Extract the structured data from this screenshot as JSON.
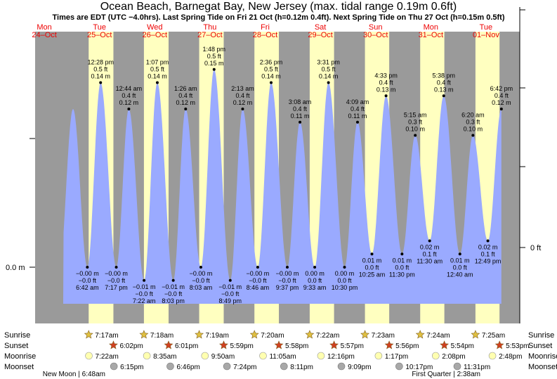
{
  "page": {
    "title": "Ocean Beach, Barnegat Bay, New Jersey (max. tidal range 0.19m 0.6ft)",
    "subtitle": "Times are EDT (UTC −4.0hrs). Last Spring Tide on Fri 21 Oct (h=0.12m 0.4ft). Next Spring Tide on Thu 27 Oct (h=0.15m 0.5ft)"
  },
  "colors": {
    "night": "#9a9a9a",
    "day": "#ffffc0",
    "tide": "#9aaaff",
    "day_label": "#ee0000",
    "sun_star": "#e0c040",
    "sunset_star": "#d04020",
    "moonrise": "#ffffb0",
    "moonset": "#a8a8a8"
  },
  "chart_data": {
    "type": "area",
    "y_unit_left": "m",
    "y_unit_right": "ft",
    "y_left_label": "0.0 m",
    "y_right_label": "0 ft",
    "ylim_m": [
      -0.05,
      0.2
    ],
    "days": [
      {
        "dow": "Mon",
        "date": "24–Oct",
        "date_iso": "2022-10-24"
      },
      {
        "dow": "Tue",
        "date": "25–Oct",
        "date_iso": "2022-10-25"
      },
      {
        "dow": "Wed",
        "date": "26–Oct",
        "date_iso": "2022-10-26"
      },
      {
        "dow": "Thu",
        "date": "27–Oct",
        "date_iso": "2022-10-27"
      },
      {
        "dow": "Fri",
        "date": "28–Oct",
        "date_iso": "2022-10-28"
      },
      {
        "dow": "Sat",
        "date": "29–Oct",
        "date_iso": "2022-10-29"
      },
      {
        "dow": "Sun",
        "date": "30–Oct",
        "date_iso": "2022-10-30"
      },
      {
        "dow": "Mon",
        "date": "31–Oct",
        "date_iso": "2022-10-31"
      },
      {
        "dow": "Tue",
        "date": "01–Nov",
        "date_iso": "2022-11-01"
      }
    ],
    "extremes": [
      {
        "date": "2022-10-25",
        "time": "6:42 am",
        "type": "low",
        "m": -0.0,
        "m_label": "−0.00 m",
        "ft_label": "−0.0 ft"
      },
      {
        "date": "2022-10-25",
        "time": "12:28 pm",
        "type": "high",
        "m": 0.14,
        "m_label": "0.14 m",
        "ft_label": "0.5 ft"
      },
      {
        "date": "2022-10-25",
        "time": "7:17 pm",
        "type": "low",
        "m": -0.0,
        "m_label": "−0.00 m",
        "ft_label": "−0.0 ft"
      },
      {
        "date": "2022-10-26",
        "time": "12:44 am",
        "type": "high",
        "m": 0.12,
        "m_label": "0.12 m",
        "ft_label": "0.4 ft"
      },
      {
        "date": "2022-10-26",
        "time": "7:22 am",
        "type": "low",
        "m": -0.01,
        "m_label": "−0.01 m",
        "ft_label": "−0.0 ft"
      },
      {
        "date": "2022-10-26",
        "time": "1:07 pm",
        "type": "high",
        "m": 0.14,
        "m_label": "0.14 m",
        "ft_label": "0.5 ft"
      },
      {
        "date": "2022-10-26",
        "time": "8:03 pm",
        "type": "low",
        "m": -0.01,
        "m_label": "−0.01 m",
        "ft_label": "−0.0 ft"
      },
      {
        "date": "2022-10-27",
        "time": "1:26 am",
        "type": "high",
        "m": 0.12,
        "m_label": "0.12 m",
        "ft_label": "0.4 ft"
      },
      {
        "date": "2022-10-27",
        "time": "8:03 am",
        "type": "low",
        "m": -0.0,
        "m_label": "−0.00 m",
        "ft_label": "−0.0 ft"
      },
      {
        "date": "2022-10-27",
        "time": "1:48 pm",
        "type": "high",
        "m": 0.15,
        "m_label": "0.15 m",
        "ft_label": "0.5 ft"
      },
      {
        "date": "2022-10-27",
        "time": "8:49 pm",
        "type": "low",
        "m": -0.01,
        "m_label": "−0.01 m",
        "ft_label": "−0.0 ft"
      },
      {
        "date": "2022-10-28",
        "time": "2:13 am",
        "type": "high",
        "m": 0.12,
        "m_label": "0.12 m",
        "ft_label": "0.4 ft"
      },
      {
        "date": "2022-10-28",
        "time": "8:46 am",
        "type": "low",
        "m": -0.0,
        "m_label": "−0.00 m",
        "ft_label": "−0.0 ft"
      },
      {
        "date": "2022-10-28",
        "time": "2:36 pm",
        "type": "high",
        "m": 0.14,
        "m_label": "0.14 m",
        "ft_label": "0.5 ft"
      },
      {
        "date": "2022-10-28",
        "time": "9:37 pm",
        "type": "low",
        "m": -0.0,
        "m_label": "−0.00 m",
        "ft_label": "−0.0 ft"
      },
      {
        "date": "2022-10-29",
        "time": "3:08 am",
        "type": "high",
        "m": 0.11,
        "m_label": "0.11 m",
        "ft_label": "0.4 ft"
      },
      {
        "date": "2022-10-29",
        "time": "9:33 am",
        "type": "low",
        "m": 0.0,
        "m_label": "0.00 m",
        "ft_label": "0.0 ft"
      },
      {
        "date": "2022-10-29",
        "time": "3:31 pm",
        "type": "high",
        "m": 0.14,
        "m_label": "0.14 m",
        "ft_label": "0.5 ft"
      },
      {
        "date": "2022-10-29",
        "time": "10:30 pm",
        "type": "low",
        "m": 0.0,
        "m_label": "0.00 m",
        "ft_label": "0.0 ft"
      },
      {
        "date": "2022-10-30",
        "time": "4:09 am",
        "type": "high",
        "m": 0.11,
        "m_label": "0.11 m",
        "ft_label": "0.4 ft"
      },
      {
        "date": "2022-10-30",
        "time": "10:25 am",
        "type": "low",
        "m": 0.01,
        "m_label": "0.01 m",
        "ft_label": "0.0 ft"
      },
      {
        "date": "2022-10-30",
        "time": "4:33 pm",
        "type": "high",
        "m": 0.13,
        "m_label": "0.13 m",
        "ft_label": "0.4 ft"
      },
      {
        "date": "2022-10-30",
        "time": "11:30 pm",
        "type": "low",
        "m": 0.01,
        "m_label": "0.01 m",
        "ft_label": "0.0 ft"
      },
      {
        "date": "2022-10-31",
        "time": "5:15 am",
        "type": "high",
        "m": 0.1,
        "m_label": "0.10 m",
        "ft_label": "0.3 ft"
      },
      {
        "date": "2022-10-31",
        "time": "11:30 am",
        "type": "low",
        "m": 0.02,
        "m_label": "0.02 m",
        "ft_label": "0.1 ft"
      },
      {
        "date": "2022-10-31",
        "time": "5:38 pm",
        "type": "high",
        "m": 0.13,
        "m_label": "0.13 m",
        "ft_label": "0.4 ft"
      },
      {
        "date": "2022-11-01",
        "time": "12:40 am",
        "type": "low",
        "m": 0.01,
        "m_label": "0.01 m",
        "ft_label": "0.0 ft"
      },
      {
        "date": "2022-11-01",
        "time": "6:20 am",
        "type": "high",
        "m": 0.1,
        "m_label": "0.10 m",
        "ft_label": "0.3 ft"
      },
      {
        "date": "2022-11-01",
        "time": "12:49 pm",
        "type": "low",
        "m": 0.02,
        "m_label": "0.02 m",
        "ft_label": "0.1 ft"
      },
      {
        "date": "2022-11-01",
        "time": "6:42 pm",
        "type": "high",
        "m": 0.12,
        "m_label": "0.12 m",
        "ft_label": "0.4 ft"
      }
    ],
    "unlabeled_leading_high_m": 0.12,
    "sun": [
      {
        "date": "2022-10-25",
        "sunrise": "7:17am",
        "sunset": "6:02pm"
      },
      {
        "date": "2022-10-26",
        "sunrise": "7:18am",
        "sunset": "6:01pm"
      },
      {
        "date": "2022-10-27",
        "sunrise": "7:19am",
        "sunset": "5:59pm"
      },
      {
        "date": "2022-10-28",
        "sunrise": "7:20am",
        "sunset": "5:58pm"
      },
      {
        "date": "2022-10-29",
        "sunrise": "7:22am",
        "sunset": "5:57pm"
      },
      {
        "date": "2022-10-30",
        "sunrise": "7:23am",
        "sunset": "5:56pm"
      },
      {
        "date": "2022-10-31",
        "sunrise": "7:24am",
        "sunset": "5:54pm"
      },
      {
        "date": "2022-11-01",
        "sunrise": "7:25am",
        "sunset": "5:53pm"
      }
    ],
    "moon": [
      {
        "date": "2022-10-25",
        "moonrise": "7:22am",
        "moonset": "6:15pm"
      },
      {
        "date": "2022-10-26",
        "moonrise": "8:35am",
        "moonset": "6:46pm"
      },
      {
        "date": "2022-10-27",
        "moonrise": "9:50am",
        "moonset": "7:24pm"
      },
      {
        "date": "2022-10-28",
        "moonrise": "11:05am",
        "moonset": "8:11pm"
      },
      {
        "date": "2022-10-29",
        "moonrise": "12:16pm",
        "moonset": "9:09pm"
      },
      {
        "date": "2022-10-30",
        "moonrise": "1:17pm",
        "moonset": "10:17pm"
      },
      {
        "date": "2022-10-31",
        "moonrise": "2:08pm",
        "moonset": "11:31pm"
      },
      {
        "date": "2022-11-01",
        "moonrise": "2:48pm",
        "moonset": ""
      }
    ],
    "moon_phases": [
      {
        "label": "New Moon | 6:48am",
        "date": "2022-10-25"
      },
      {
        "label": "First Quarter | 2:38am",
        "date": "2022-11-01"
      }
    ],
    "row_labels": [
      "Sunrise",
      "Sunset",
      "Moonrise",
      "Moonset"
    ]
  }
}
